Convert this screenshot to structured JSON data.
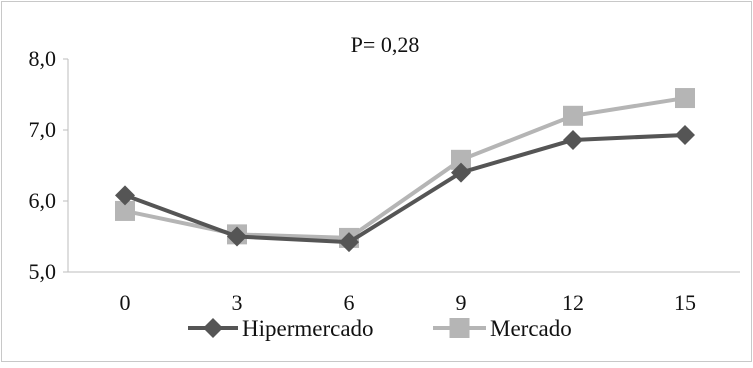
{
  "chart_data": {
    "type": "line",
    "annotation": "P= 0,28",
    "x": [
      "0",
      "3",
      "6",
      "9",
      "12",
      "15"
    ],
    "y_ticks": [
      "5,0",
      "6,0",
      "7,0",
      "8,0"
    ],
    "ylim": [
      5.0,
      8.0
    ],
    "grid": false,
    "legend_position": "bottom",
    "series": [
      {
        "name": "Hipermercado",
        "values": [
          6.08,
          5.5,
          5.42,
          6.4,
          6.86,
          6.93
        ],
        "color": "#555555",
        "marker": "diamond"
      },
      {
        "name": "Mercado",
        "values": [
          5.86,
          5.53,
          5.48,
          6.58,
          7.2,
          7.45
        ],
        "color": "#b5b5b5",
        "marker": "square"
      }
    ]
  }
}
